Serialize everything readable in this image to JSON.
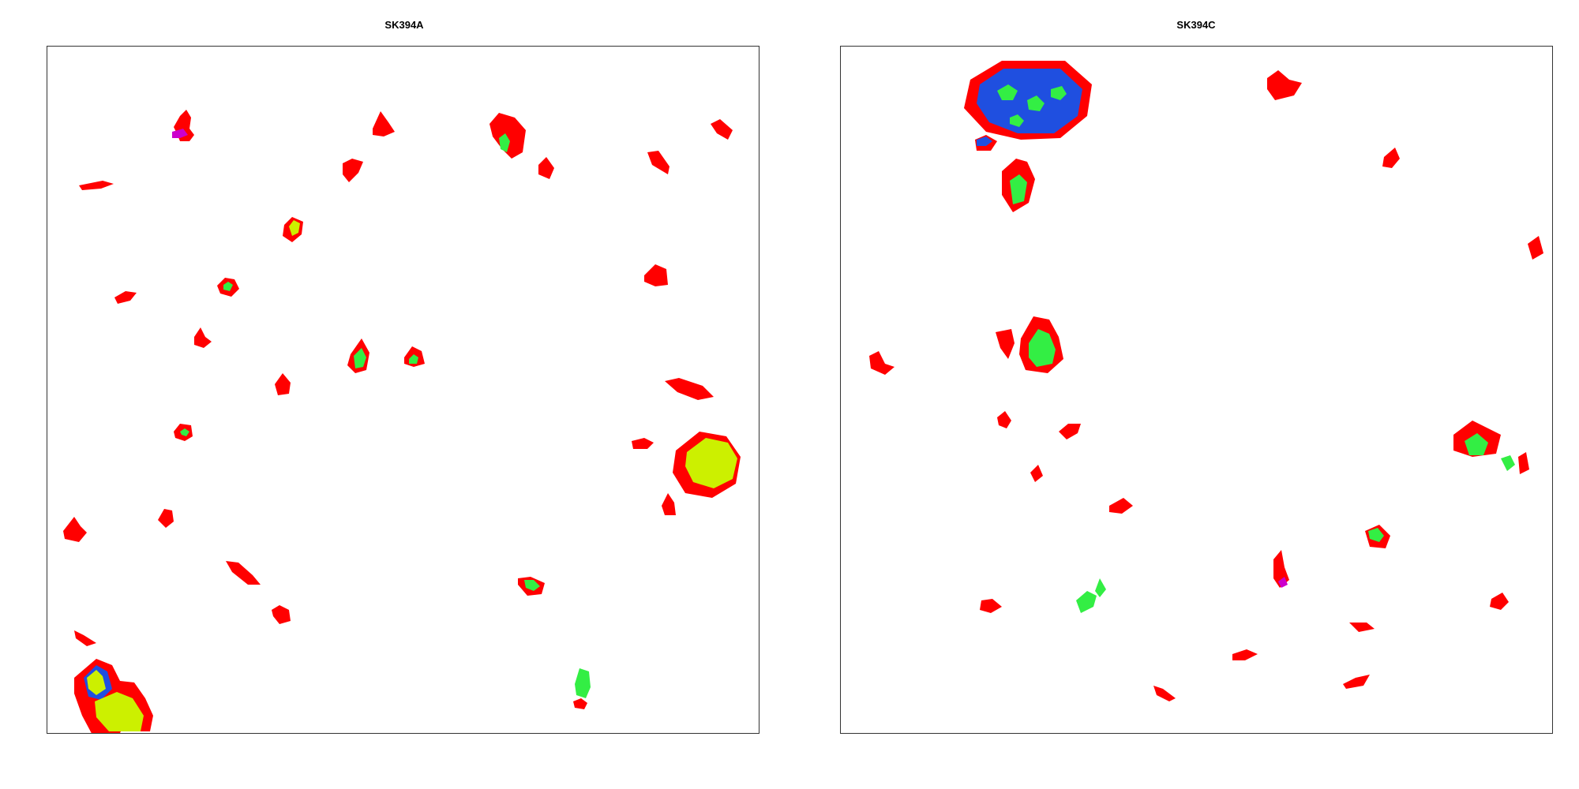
{
  "panels": [
    {
      "title": "SK394A"
    },
    {
      "title": "SK394C"
    }
  ],
  "colors": {
    "red": "#ff0000",
    "green": "#33ee44",
    "blue": "#1f4fe0",
    "yellow": "#ccf000",
    "magenta": "#cc00cc",
    "frame": "#333333"
  }
}
